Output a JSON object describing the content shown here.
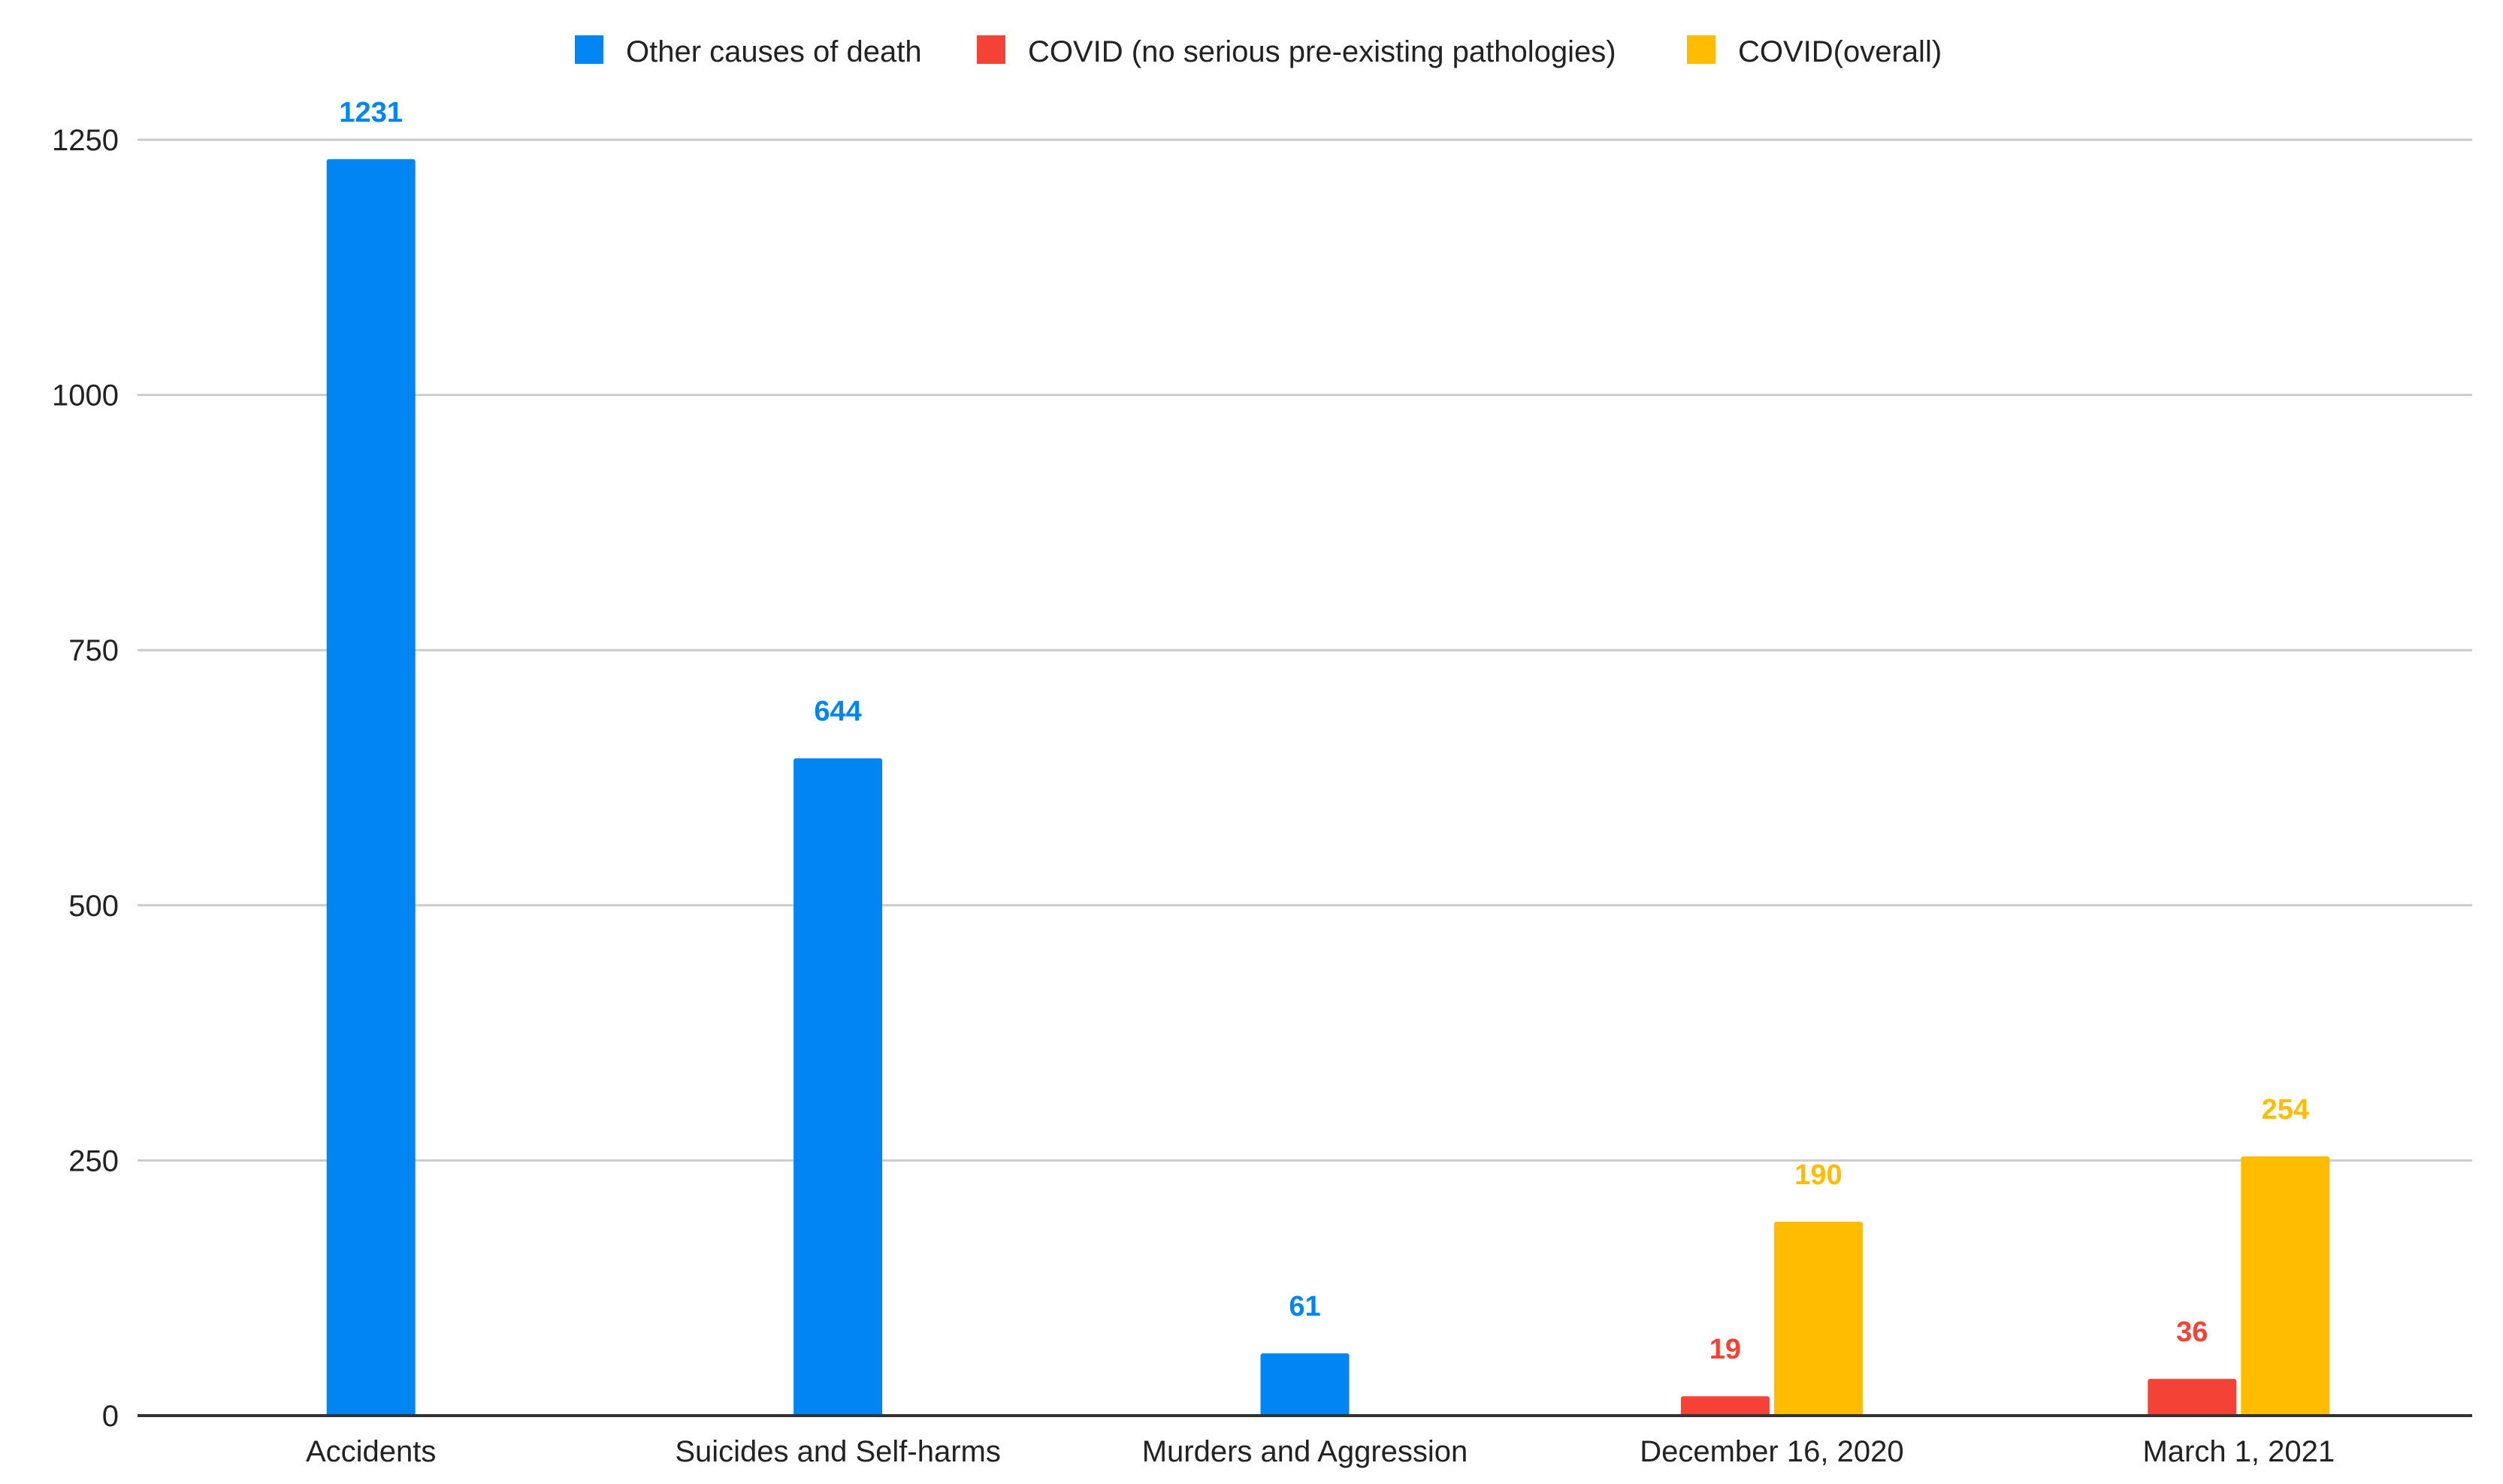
{
  "chart_data": {
    "type": "bar",
    "title": "",
    "xlabel": "",
    "ylabel": "",
    "categories": [
      "Accidents",
      "Suicides and Self-harms",
      "Murders and Aggression",
      "December 16, 2020",
      "March 1, 2021"
    ],
    "series": [
      {
        "name": "Other causes of death",
        "color": "#0085f2",
        "values": [
          1231,
          644,
          61,
          null,
          null
        ]
      },
      {
        "name": "COVID (no serious pre-existing pathologies)",
        "color": "#f44336",
        "values": [
          null,
          null,
          null,
          19,
          36
        ]
      },
      {
        "name": "COVID(overall)",
        "color": "#ffbc00",
        "values": [
          null,
          null,
          null,
          190,
          254
        ]
      }
    ],
    "ylim": [
      0,
      1250
    ],
    "yticks": [
      0,
      250,
      500,
      750,
      1000,
      1250
    ],
    "grid": true,
    "legend_position": "top-center",
    "data_labels": true
  }
}
